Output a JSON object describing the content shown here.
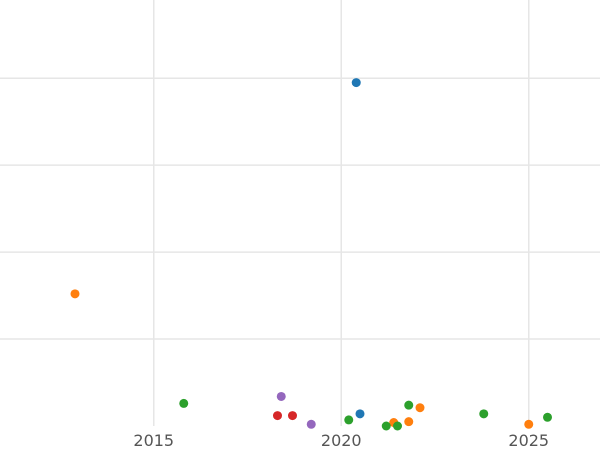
{
  "chart_data": {
    "type": "scatter",
    "title": "",
    "xlabel": "",
    "ylabel": "",
    "xlim": [
      2010.9,
      2026.9
    ],
    "ylim": [
      0,
      4.9
    ],
    "grid": true,
    "x_ticks": [
      {
        "value": 2015,
        "label": "2015"
      },
      {
        "value": 2020,
        "label": "2020"
      },
      {
        "value": 2025,
        "label": "2025"
      }
    ],
    "y_gridlines": [
      1,
      2,
      3,
      4
    ],
    "colors": {
      "blue": "#1f77b4",
      "orange": "#ff7f0e",
      "green": "#2ca02c",
      "red": "#d62728",
      "purple": "#9467bd"
    },
    "points": [
      {
        "x": 2020.4,
        "y": 3.95,
        "color": "blue"
      },
      {
        "x": 2020.5,
        "y": 0.14,
        "color": "blue"
      },
      {
        "x": 2012.9,
        "y": 1.52,
        "color": "orange"
      },
      {
        "x": 2021.4,
        "y": 0.04,
        "color": "orange"
      },
      {
        "x": 2021.8,
        "y": 0.05,
        "color": "orange"
      },
      {
        "x": 2022.1,
        "y": 0.21,
        "color": "orange"
      },
      {
        "x": 2025.0,
        "y": 0.02,
        "color": "orange"
      },
      {
        "x": 2015.8,
        "y": 0.26,
        "color": "green"
      },
      {
        "x": 2020.2,
        "y": 0.07,
        "color": "green"
      },
      {
        "x": 2021.2,
        "y": 0.0,
        "color": "green"
      },
      {
        "x": 2021.5,
        "y": 0.0,
        "color": "green"
      },
      {
        "x": 2021.8,
        "y": 0.24,
        "color": "green"
      },
      {
        "x": 2023.8,
        "y": 0.14,
        "color": "green"
      },
      {
        "x": 2025.5,
        "y": 0.1,
        "color": "green"
      },
      {
        "x": 2018.3,
        "y": 0.12,
        "color": "red"
      },
      {
        "x": 2018.7,
        "y": 0.12,
        "color": "red"
      },
      {
        "x": 2018.4,
        "y": 0.34,
        "color": "purple"
      },
      {
        "x": 2019.2,
        "y": 0.02,
        "color": "purple"
      }
    ]
  }
}
